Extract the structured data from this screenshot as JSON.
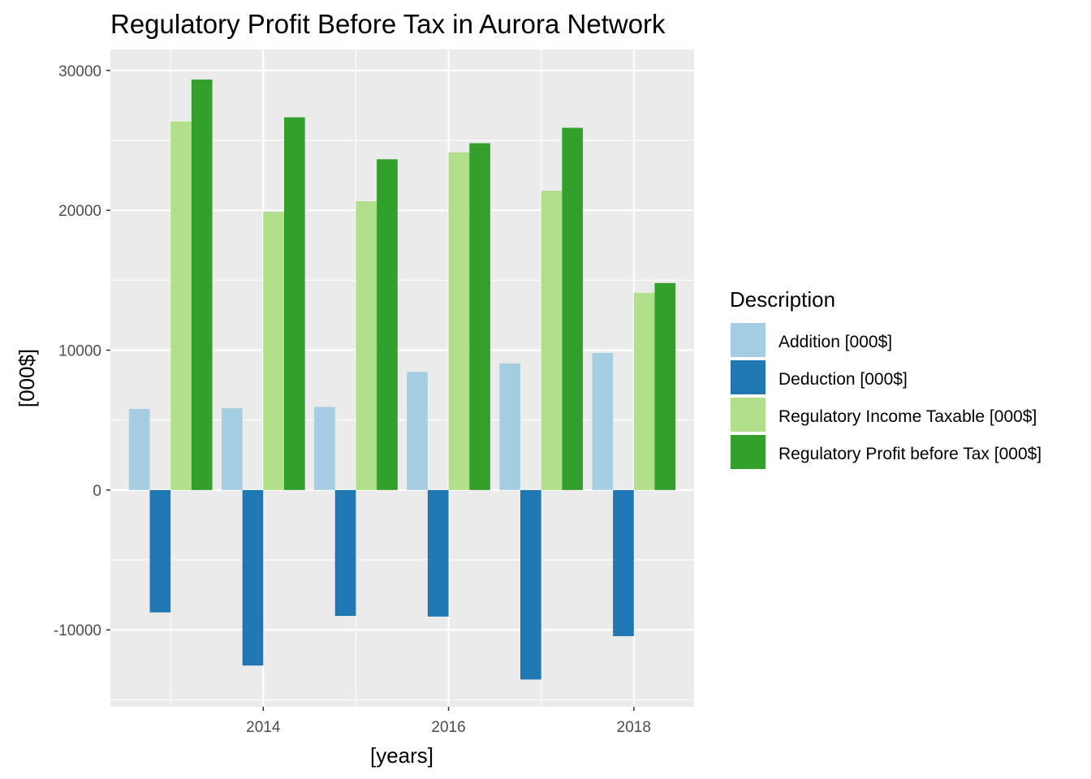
{
  "chart_data": {
    "type": "bar",
    "title": "Regulatory Profit Before Tax in Aurora Network",
    "xlabel": "[years]",
    "ylabel": "[000$]",
    "x": [
      2013,
      2014,
      2015,
      2016,
      2017,
      2018
    ],
    "x_ticks": [
      2014,
      2016,
      2018
    ],
    "y_ticks": [
      -10000,
      0,
      10000,
      20000,
      30000
    ],
    "ylim": [
      -15500,
      31500
    ],
    "xlim": [
      2012.35,
      2018.65
    ],
    "grid": true,
    "legend_title": "Description",
    "legend_position": "right",
    "series": [
      {
        "name": "Addition [000$]",
        "color": "#a6cee3",
        "values": [
          5800,
          5850,
          5950,
          8450,
          9050,
          9800
        ]
      },
      {
        "name": "Deduction [000$]",
        "color": "#1f78b4",
        "values": [
          -8750,
          -12550,
          -9000,
          -9050,
          -13550,
          -10450
        ]
      },
      {
        "name": "Regulatory Income Taxable [000$]",
        "color": "#b2df8a",
        "values": [
          26350,
          19900,
          20650,
          24150,
          21400,
          14100
        ]
      },
      {
        "name": "Regulatory Profit before Tax [000$]",
        "color": "#33a02c",
        "values": [
          29350,
          26650,
          23650,
          24800,
          25900,
          14800
        ]
      }
    ]
  }
}
